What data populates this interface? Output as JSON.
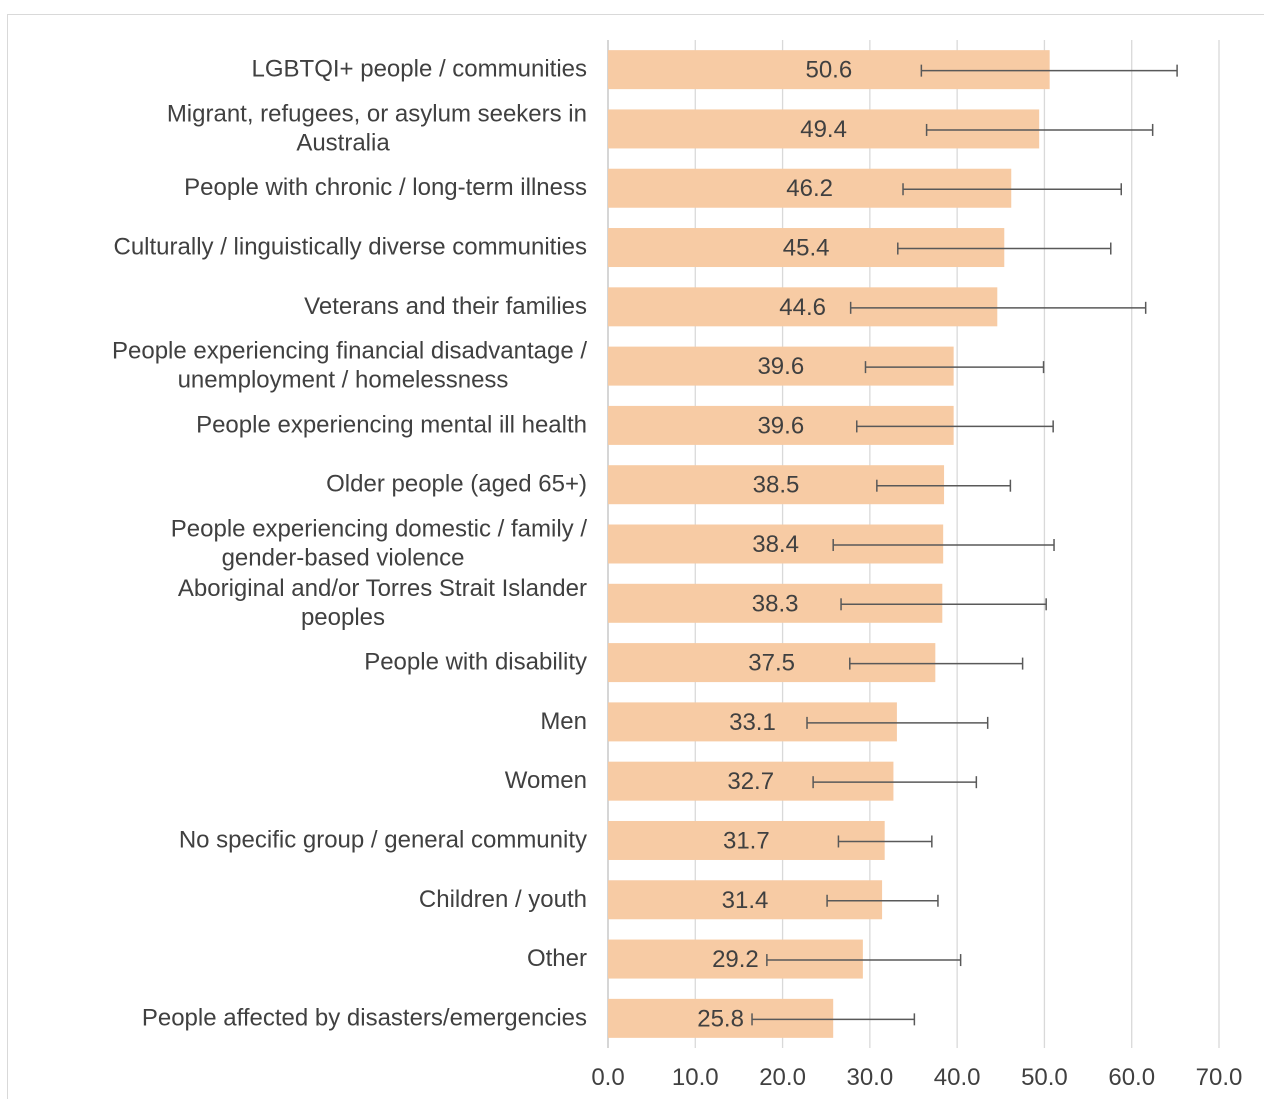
{
  "chart_data": {
    "type": "bar",
    "orientation": "horizontal",
    "title": "",
    "xlabel": "",
    "ylabel": "",
    "xlim": [
      0,
      70
    ],
    "x_ticks": [
      "0.0",
      "10.0",
      "20.0",
      "30.0",
      "40.0",
      "50.0",
      "60.0",
      "70.0"
    ],
    "grid": "vertical",
    "bar_color": "#f7cba4",
    "error_bar_color": "#595959",
    "categories": [
      [
        "LGBTQI+ people / communities"
      ],
      [
        "Migrant, refugees, or asylum seekers in",
        "Australia"
      ],
      [
        "People with chronic / long-term illness"
      ],
      [
        "Culturally / linguistically diverse communities"
      ],
      [
        "Veterans and their families"
      ],
      [
        "People experiencing financial disadvantage /",
        "unemployment / homelessness"
      ],
      [
        "People experiencing mental ill health"
      ],
      [
        "Older people (aged 65+)"
      ],
      [
        "People experiencing domestic / family /",
        "gender-based violence"
      ],
      [
        "Aboriginal and/or Torres Strait Islander",
        "peoples"
      ],
      [
        "People with disability"
      ],
      [
        "Men"
      ],
      [
        "Women"
      ],
      [
        "No specific group / general community"
      ],
      [
        "Children / youth"
      ],
      [
        "Other"
      ],
      [
        "People affected by disasters/emergencies"
      ]
    ],
    "value_labels": [
      "50.6",
      "49.4",
      "46.2",
      "45.4",
      "44.6",
      "39.6",
      "39.6",
      "38.5",
      "38.4",
      "38.3",
      "37.5",
      "33.1",
      "32.7",
      "31.7",
      "31.4",
      "29.2",
      "25.8"
    ],
    "values": [
      50.6,
      49.4,
      46.2,
      45.4,
      44.6,
      39.6,
      39.6,
      38.5,
      38.4,
      38.3,
      37.5,
      33.1,
      32.7,
      31.7,
      31.4,
      29.2,
      25.8
    ],
    "error_low": [
      35.9,
      36.5,
      33.8,
      33.2,
      27.8,
      29.5,
      28.5,
      30.8,
      25.8,
      26.7,
      27.7,
      22.8,
      23.5,
      26.4,
      25.1,
      18.2,
      16.5
    ],
    "error_high": [
      65.2,
      62.4,
      58.8,
      57.6,
      61.6,
      49.9,
      51.0,
      46.1,
      51.1,
      50.2,
      47.5,
      43.5,
      42.2,
      37.1,
      37.8,
      40.4,
      35.1
    ]
  }
}
